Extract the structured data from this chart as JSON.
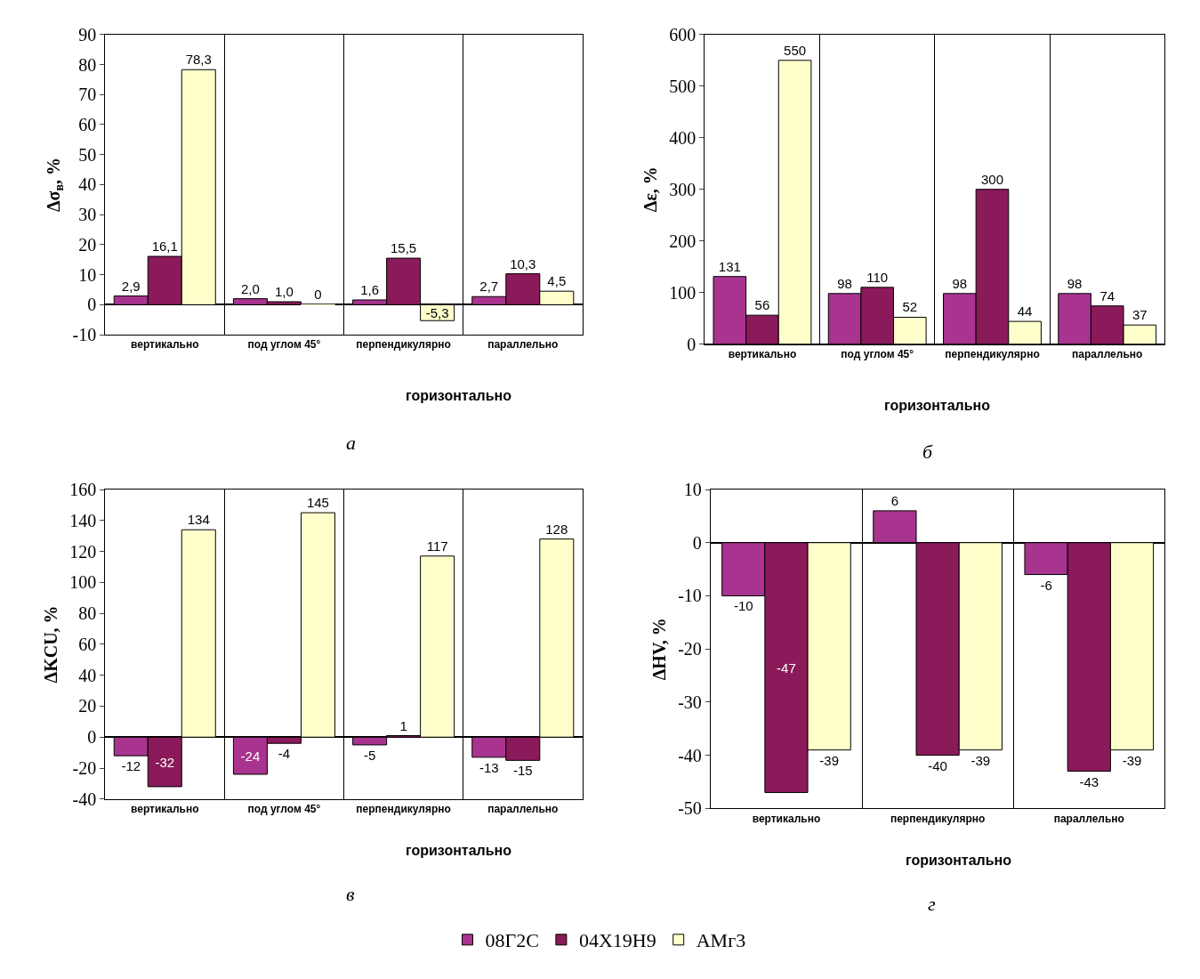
{
  "chart_data": [
    {
      "type": "bar",
      "ylabel": "Δσ$_{в}$, %",
      "categories": [
        "вертикально",
        "под углом 45°",
        "перпендикулярно",
        "параллельно"
      ],
      "annotations": [
        "горизонтально",
        "а"
      ],
      "ylim": [
        -10,
        90
      ],
      "yticks": [
        -10,
        0,
        10,
        20,
        30,
        40,
        50,
        60,
        70,
        80,
        90
      ],
      "grid": "x",
      "legend": "bottom",
      "series": [
        {
          "name": "08Г2С",
          "color": "#a8348f",
          "values": [
            2.9,
            2.0,
            1.6,
            2.7
          ],
          "value_labels": [
            "2,9",
            "2,0",
            "1,6",
            "2,7"
          ]
        },
        {
          "name": "04Х19Н9",
          "color": "#8b1a5a",
          "values": [
            16.1,
            1.0,
            15.5,
            10.3
          ],
          "value_labels": [
            "16,1",
            "1,0",
            "15,5",
            "10,3"
          ]
        },
        {
          "name": "АМг3",
          "color": "#ffffcc",
          "values": [
            78.3,
            0,
            -5.3,
            4.5
          ],
          "value_labels": [
            "78,3",
            "0",
            "-5,3",
            "4,5"
          ]
        }
      ]
    },
    {
      "type": "bar",
      "ylabel": "Δε, %",
      "categories": [
        "вертикально",
        "под углом 45°",
        "перпендикулярно",
        "параллельно"
      ],
      "annotations": [
        "горизонтально",
        "б"
      ],
      "ylim": [
        0,
        600
      ],
      "yticks": [
        0,
        100,
        200,
        300,
        400,
        500,
        600
      ],
      "grid": "x",
      "data_labels": true,
      "legend": "bottom",
      "series": [
        {
          "name": "08Г2С",
          "color": "#a8348f",
          "values": [
            131,
            98,
            98,
            98
          ]
        },
        {
          "name": "04Х19Н9",
          "color": "#8b1a5a",
          "values": [
            56,
            110,
            300,
            74
          ]
        },
        {
          "name": "АМг3",
          "color": "#ffffcc",
          "values": [
            550,
            52,
            44,
            37
          ]
        }
      ]
    },
    {
      "type": "bar",
      "ylabel": "ΔKCU, %",
      "categories": [
        "вертикально",
        "под углом 45°",
        "перпендикулярно",
        "параллельно"
      ],
      "annotations": [
        "горизонтально",
        "в"
      ],
      "ylim": [
        -40,
        160
      ],
      "yticks": [
        -40,
        -20,
        0,
        20,
        40,
        60,
        80,
        100,
        120,
        140,
        160
      ],
      "grid": "x",
      "data_labels": true,
      "legend": "bottom",
      "series": [
        {
          "name": "08Г2С",
          "color": "#a8348f",
          "values": [
            -12,
            -24,
            -5,
            -13
          ]
        },
        {
          "name": "04Х19Н9",
          "color": "#8b1a5a",
          "values": [
            -32,
            -4,
            1,
            -15
          ]
        },
        {
          "name": "АМг3",
          "color": "#ffffcc",
          "values": [
            134,
            145,
            117,
            128
          ]
        }
      ]
    },
    {
      "type": "bar",
      "ylabel": "ΔHV, %",
      "categories": [
        "вертикально",
        "перпендикулярно",
        "параллельно"
      ],
      "annotations": [
        "горизонтально",
        "г"
      ],
      "ylim": [
        -50,
        10
      ],
      "yticks": [
        -50,
        -40,
        -30,
        -20,
        -10,
        0,
        10
      ],
      "grid": "x",
      "data_labels": true,
      "legend": "bottom",
      "series": [
        {
          "name": "08Г2С",
          "color": "#a8348f",
          "values": [
            -10,
            6,
            -6
          ]
        },
        {
          "name": "04Х19Н9",
          "color": "#8b1a5a",
          "values": [
            -47,
            -40,
            -43
          ]
        },
        {
          "name": "АМг3",
          "color": "#ffffcc",
          "values": [
            -39,
            -39,
            -39
          ]
        }
      ]
    }
  ]
}
